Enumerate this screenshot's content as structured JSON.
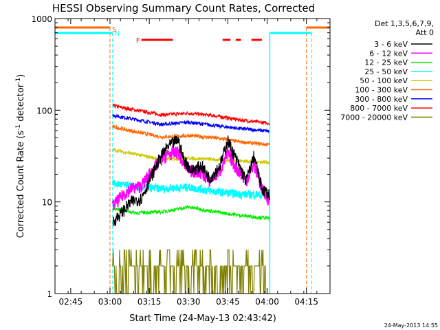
{
  "chart_data": {
    "type": "line",
    "title": "HESSI Observing Summary Count Rates, Corrected",
    "xlabel": "Start Time (24-May-13 02:43:42)",
    "ylabel": "Corrected Count Rate (s",
    "ylabel_sup1": "-1",
    "ylabel_mid": " detector",
    "ylabel_sup2": "-1",
    "ylabel_end": ")",
    "y_scale": "log",
    "xlim": [
      "02:39",
      "04:24"
    ],
    "ylim": [
      1,
      1000
    ],
    "x_ticks": [
      "02:45",
      "03:00",
      "03:15",
      "03:30",
      "03:45",
      "04:00",
      "04:15"
    ],
    "x_ticks_min": [
      165,
      180,
      195,
      210,
      225,
      240,
      255
    ],
    "y_ticks": [
      {
        "value": 1,
        "label": "1"
      },
      {
        "value": 10,
        "label": "10"
      },
      {
        "value": 100,
        "label": "100"
      },
      {
        "value": 1000,
        "label": "1000"
      }
    ],
    "legend_title_1": "Det 1,3,5,6,7,9,",
    "legend_title_2": "Att 0",
    "legend_position": "right",
    "series": [
      {
        "name": "3 - 6 keV",
        "color": "#000000",
        "x": [
          "03:01",
          "03:05",
          "03:08",
          "03:12",
          "03:15",
          "03:19",
          "03:22",
          "03:26",
          "03:28",
          "03:31",
          "03:35",
          "03:38",
          "03:42",
          "03:45",
          "03:48",
          "03:52",
          "03:55",
          "03:58",
          "04:01"
        ],
        "values": [
          6,
          8,
          10,
          11,
          17,
          30,
          40,
          48,
          30,
          22,
          25,
          18,
          25,
          47,
          30,
          17,
          32,
          14,
          12
        ]
      },
      {
        "name": "6 - 12 keV",
        "color": "#ff00ff",
        "x": [
          "03:01",
          "03:05",
          "03:08",
          "03:12",
          "03:15",
          "03:19",
          "03:22",
          "03:26",
          "03:28",
          "03:31",
          "03:35",
          "03:38",
          "03:42",
          "03:45",
          "03:48",
          "03:52",
          "03:55",
          "03:58",
          "04:01"
        ],
        "values": [
          9,
          12,
          14,
          15,
          20,
          28,
          33,
          35,
          26,
          22,
          21,
          17,
          22,
          34,
          24,
          17,
          26,
          14,
          10
        ]
      },
      {
        "name": "12 - 25 keV",
        "color": "#00ee00",
        "x": [
          "03:01",
          "03:10",
          "03:20",
          "03:30",
          "03:40",
          "03:50",
          "04:01"
        ],
        "values": [
          8.5,
          7.6,
          7.8,
          8.8,
          7.8,
          7.1,
          6.6
        ]
      },
      {
        "name": "25 - 50 keV",
        "color": "#00ffff",
        "x": [
          "03:01",
          "03:10",
          "03:20",
          "03:30",
          "03:40",
          "03:50",
          "04:01"
        ],
        "values": [
          16,
          14.5,
          14,
          14.5,
          13,
          12.2,
          11.8
        ]
      },
      {
        "name": "50 - 100 keV",
        "color": "#cccc00",
        "x": [
          "03:01",
          "03:10",
          "03:20",
          "03:30",
          "03:40",
          "03:50",
          "04:01"
        ],
        "values": [
          37,
          33,
          29,
          30,
          29,
          28,
          27
        ]
      },
      {
        "name": "100 - 300 keV",
        "color": "#ff6600",
        "x": [
          "03:01",
          "03:10",
          "03:20",
          "03:30",
          "03:40",
          "03:50",
          "04:01"
        ],
        "values": [
          66,
          58,
          51,
          53,
          50,
          45,
          42
        ]
      },
      {
        "name": "300 - 800 keV",
        "color": "#0000ff",
        "x": [
          "03:01",
          "03:10",
          "03:20",
          "03:30",
          "03:40",
          "03:50",
          "04:01"
        ],
        "values": [
          88,
          79,
          70,
          74,
          68,
          63,
          59
        ]
      },
      {
        "name": "800 - 7000 keV",
        "color": "#ff0000",
        "x": [
          "03:01",
          "03:10",
          "03:20",
          "03:30",
          "03:40",
          "03:50",
          "04:01"
        ],
        "values": [
          112,
          100,
          89,
          93,
          87,
          78,
          72
        ]
      },
      {
        "name": "7000 - 20000 keV",
        "color": "#808000",
        "x": [
          "03:01",
          "03:15",
          "03:30",
          "03:45",
          "04:01"
        ],
        "values": [
          2,
          2,
          2,
          2,
          2
        ]
      }
    ],
    "annotations": [
      {
        "label": "S",
        "color": "#ff6600",
        "x": "03:00"
      },
      {
        "label": "N",
        "color": "#00ffff",
        "x": "03:01"
      },
      {
        "label": "F",
        "color": "#ff0000",
        "x": "03:11"
      }
    ],
    "flare_segments": [
      [
        "03:12",
        "03:24"
      ],
      [
        "03:43",
        "03:46"
      ],
      [
        "03:48",
        "03:50"
      ],
      [
        "03:54",
        "03:58"
      ]
    ],
    "saa_intervals": [
      [
        "02:39",
        "03:00"
      ],
      [
        "04:15",
        "04:24"
      ]
    ],
    "night_intervals": [
      [
        "02:39",
        "03:01"
      ],
      [
        "04:01",
        "04:17"
      ]
    ]
  },
  "footer": {
    "timestamp": "24-May-2013 14:55"
  }
}
